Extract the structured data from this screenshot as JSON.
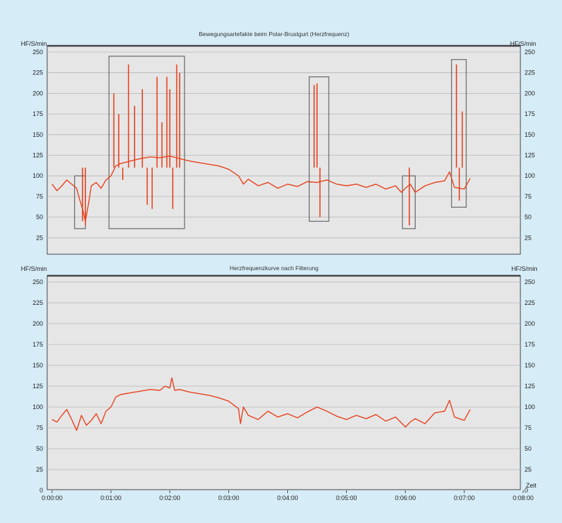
{
  "chart_data": [
    {
      "type": "line",
      "title": "Bewegungsartefakte beim Polar-Brustgurt (Herzfrequenz)",
      "ylabel_left": "HF/S/min",
      "ylabel_right": "HF/S/min",
      "ylim": [
        0,
        260
      ],
      "yticks": [
        25,
        50,
        75,
        100,
        125,
        150,
        175,
        200,
        225,
        250
      ],
      "xlim": [
        "0:00:00",
        "0:08:00"
      ],
      "grid": true,
      "colors": {
        "line": "#e8401c",
        "box": "#666666",
        "plot_bg": "#e6e6e6"
      },
      "series": [
        {
          "x": [
            "0:00:00",
            "0:00:05",
            "0:00:10",
            "0:00:15",
            "0:00:20",
            "0:00:25",
            "0:00:28",
            "0:00:31",
            "0:00:34",
            "0:00:37",
            "0:00:40",
            "0:00:45",
            "0:00:50",
            "0:00:55",
            "0:01:00",
            "0:01:05",
            "0:01:10",
            "0:01:20",
            "0:01:30",
            "0:01:40",
            "0:01:50",
            "0:02:00",
            "0:02:10",
            "0:02:20",
            "0:02:30",
            "0:02:40",
            "0:02:50",
            "0:03:00",
            "0:03:10",
            "0:03:15",
            "0:03:20",
            "0:03:30",
            "0:03:40",
            "0:03:50",
            "0:04:00",
            "0:04:10",
            "0:04:20",
            "0:04:30",
            "0:04:40",
            "0:04:50",
            "0:05:00",
            "0:05:10",
            "0:05:20",
            "0:05:30",
            "0:05:40",
            "0:05:50",
            "0:05:56",
            "0:06:00",
            "0:06:05",
            "0:06:10",
            "0:06:20",
            "0:06:30",
            "0:06:40",
            "0:06:45",
            "0:06:50",
            "0:07:00",
            "0:07:06"
          ],
          "y": [
            90,
            82,
            88,
            95,
            90,
            85,
            72,
            60,
            45,
            65,
            88,
            92,
            85,
            95,
            100,
            112,
            115,
            118,
            121,
            123,
            122,
            124,
            121,
            118,
            116,
            114,
            112,
            108,
            100,
            90,
            96,
            88,
            92,
            85,
            90,
            87,
            93,
            92,
            95,
            90,
            88,
            90,
            86,
            90,
            84,
            88,
            80,
            85,
            90,
            80,
            88,
            92,
            94,
            105,
            86,
            84,
            97
          ]
        }
      ],
      "spikes": [
        {
          "x": "0:00:31",
          "y": 45
        },
        {
          "x": "0:00:34",
          "y": 40
        },
        {
          "x": "0:01:03",
          "y": 200
        },
        {
          "x": "0:01:08",
          "y": 175
        },
        {
          "x": "0:01:12",
          "y": 95
        },
        {
          "x": "0:01:18",
          "y": 235
        },
        {
          "x": "0:01:24",
          "y": 185
        },
        {
          "x": "0:01:32",
          "y": 205
        },
        {
          "x": "0:01:37",
          "y": 65
        },
        {
          "x": "0:01:42",
          "y": 60
        },
        {
          "x": "0:01:47",
          "y": 220
        },
        {
          "x": "0:01:52",
          "y": 165
        },
        {
          "x": "0:01:57",
          "y": 220
        },
        {
          "x": "0:02:00",
          "y": 205
        },
        {
          "x": "0:02:03",
          "y": 60
        },
        {
          "x": "0:02:07",
          "y": 235
        },
        {
          "x": "0:02:10",
          "y": 225
        },
        {
          "x": "0:04:27",
          "y": 210
        },
        {
          "x": "0:04:30",
          "y": 212
        },
        {
          "x": "0:04:33",
          "y": 50
        },
        {
          "x": "0:06:04",
          "y": 40
        },
        {
          "x": "0:06:52",
          "y": 235
        },
        {
          "x": "0:06:55",
          "y": 70
        },
        {
          "x": "0:06:58",
          "y": 178
        }
      ],
      "artifact_boxes": [
        {
          "x_start": "0:00:23",
          "x_end": "0:00:34",
          "y_low": 36,
          "y_high": 100
        },
        {
          "x_start": "0:00:58",
          "x_end": "0:02:15",
          "y_low": 36,
          "y_high": 245
        },
        {
          "x_start": "0:04:22",
          "x_end": "0:04:42",
          "y_low": 45,
          "y_high": 220
        },
        {
          "x_start": "0:05:57",
          "x_end": "0:06:10",
          "y_low": 36,
          "y_high": 100
        },
        {
          "x_start": "0:06:47",
          "x_end": "0:07:02",
          "y_low": 62,
          "y_high": 241
        }
      ]
    },
    {
      "type": "line",
      "title": "Herzfrequenzkurve nach Filterung",
      "ylabel_left": "HF/S/min",
      "ylabel_right": "HF/S/min",
      "ylim": [
        0,
        260
      ],
      "yticks": [
        0,
        25,
        50,
        75,
        100,
        125,
        150,
        175,
        200,
        225,
        250
      ],
      "xlabel": "Zeit",
      "xticks": [
        "0:00:00",
        "0:01:00",
        "0:02:00",
        "0:03:00",
        "0:04:00",
        "0:05:00",
        "0:06:00",
        "0:07:00",
        "0:08:00"
      ],
      "xlim": [
        "0:00:00",
        "0:08:00"
      ],
      "grid": true,
      "colors": {
        "line": "#e8401c",
        "plot_bg": "#e6e6e6"
      },
      "series": [
        {
          "x": [
            "0:00:00",
            "0:00:05",
            "0:00:10",
            "0:00:15",
            "0:00:20",
            "0:00:25",
            "0:00:30",
            "0:00:35",
            "0:00:40",
            "0:00:45",
            "0:00:50",
            "0:00:55",
            "0:01:00",
            "0:01:05",
            "0:01:10",
            "0:01:20",
            "0:01:30",
            "0:01:40",
            "0:01:50",
            "0:01:55",
            "0:02:00",
            "0:02:02",
            "0:02:05",
            "0:02:10",
            "0:02:20",
            "0:02:30",
            "0:02:40",
            "0:02:50",
            "0:03:00",
            "0:03:10",
            "0:03:12",
            "0:03:15",
            "0:03:20",
            "0:03:30",
            "0:03:40",
            "0:03:50",
            "0:04:00",
            "0:04:10",
            "0:04:20",
            "0:04:30",
            "0:04:40",
            "0:04:50",
            "0:05:00",
            "0:05:10",
            "0:05:20",
            "0:05:30",
            "0:05:40",
            "0:05:50",
            "0:06:00",
            "0:06:05",
            "0:06:10",
            "0:06:20",
            "0:06:30",
            "0:06:40",
            "0:06:45",
            "0:06:50",
            "0:07:00",
            "0:07:06"
          ],
          "y": [
            85,
            82,
            90,
            97,
            85,
            72,
            90,
            78,
            84,
            92,
            80,
            95,
            100,
            112,
            115,
            117,
            119,
            121,
            120,
            125,
            123,
            135,
            120,
            121,
            118,
            116,
            114,
            111,
            107,
            98,
            80,
            100,
            90,
            85,
            95,
            88,
            92,
            87,
            94,
            100,
            95,
            89,
            85,
            90,
            86,
            91,
            83,
            88,
            76,
            82,
            86,
            80,
            93,
            95,
            108,
            88,
            84,
            97
          ]
        }
      ]
    }
  ]
}
